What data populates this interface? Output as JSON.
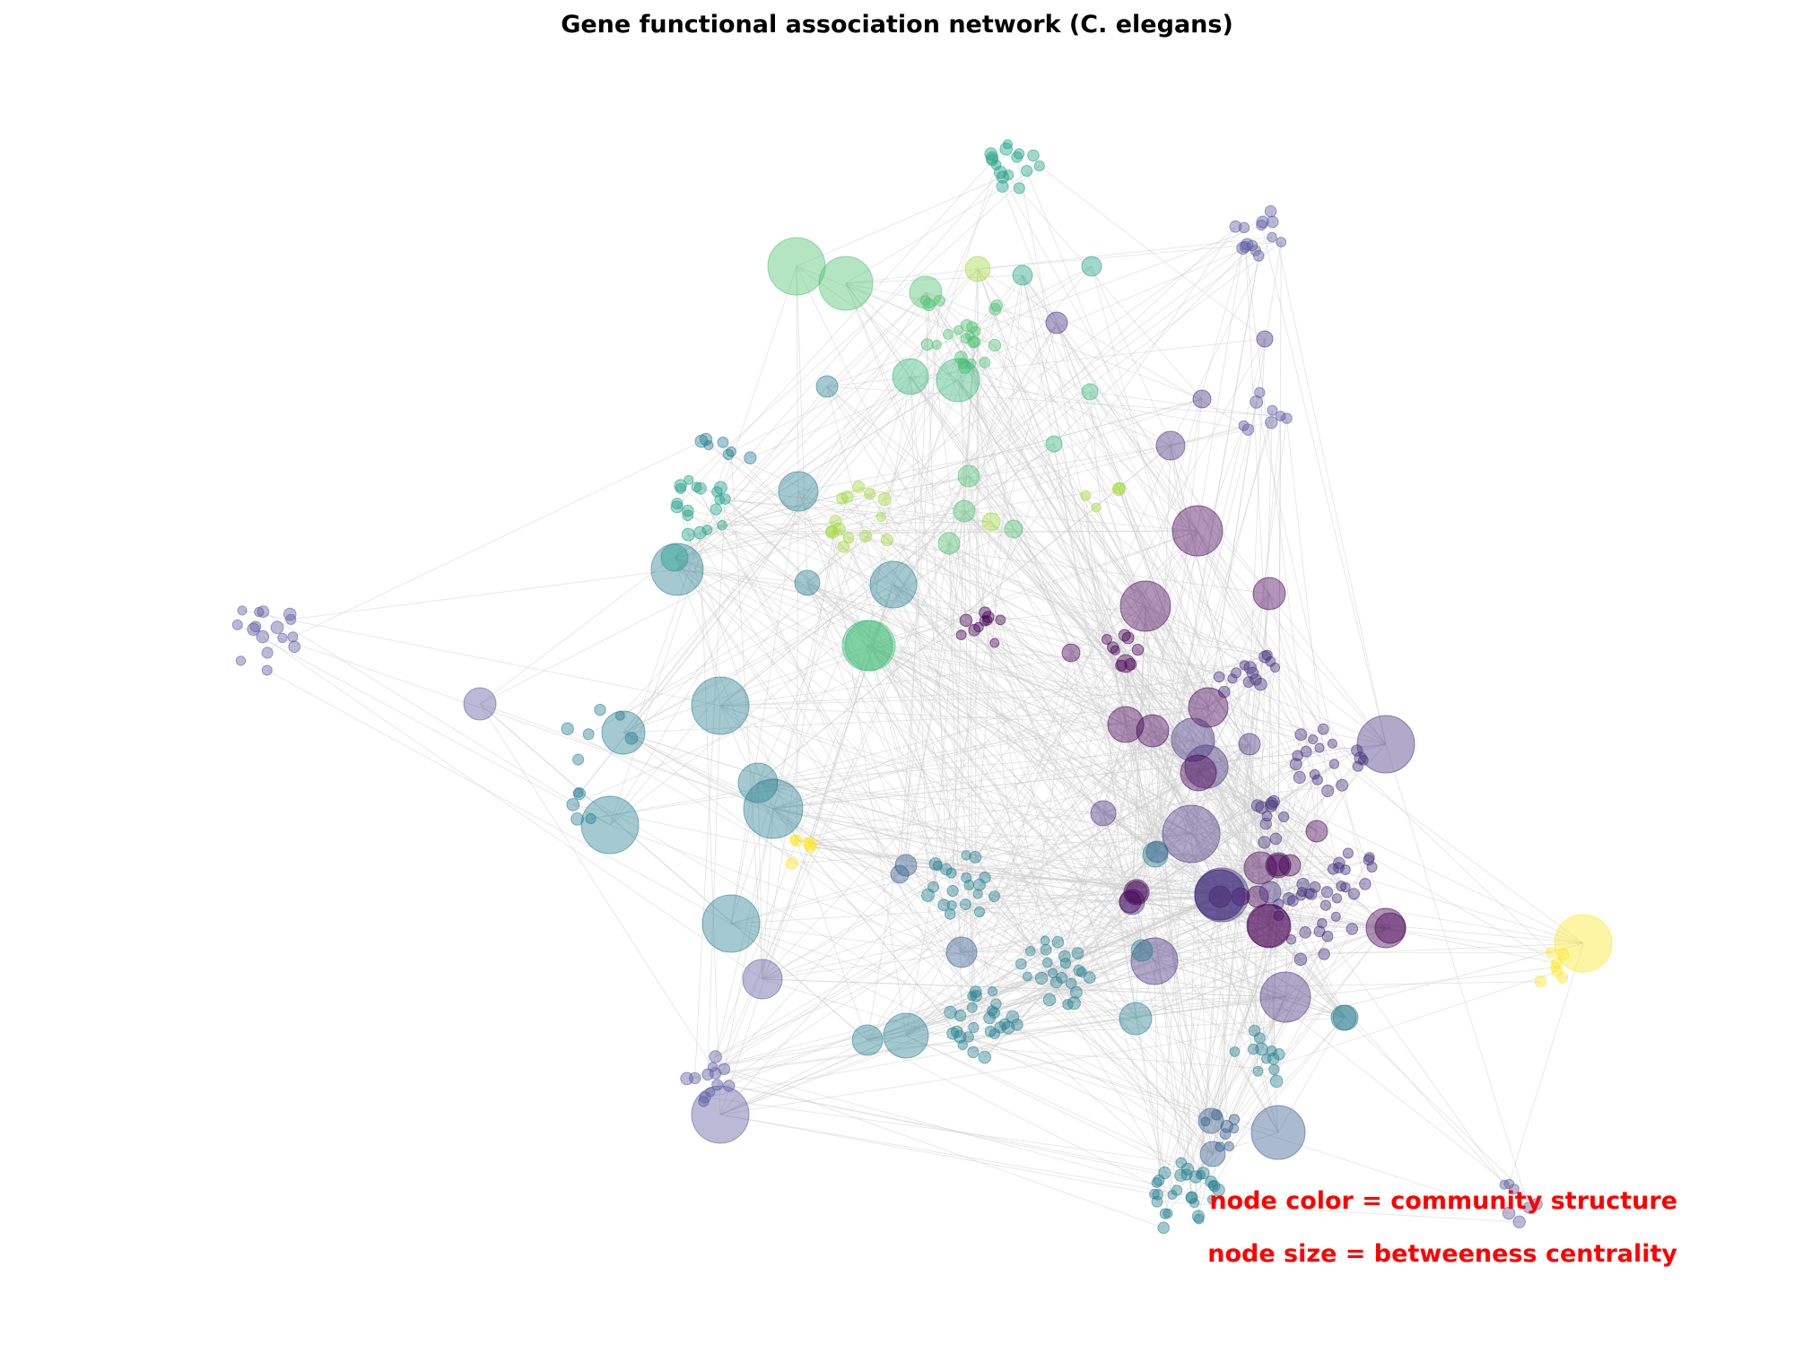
{
  "title": "Gene functional association network (C. elegans)",
  "annotations": {
    "color_note": "node color = community structure",
    "size_note": "node size = betweeness centrality"
  },
  "colors": {
    "annotation_text": "#ff0000",
    "edge": "#cccccc",
    "communities": [
      "#440154",
      "#46327e",
      "#365c8d",
      "#277f8e",
      "#1fa187",
      "#4ac16d",
      "#a0da39",
      "#fde725",
      "#5b5aa0",
      "#6a4c93",
      "#31688e",
      "#35b779"
    ]
  }
}
